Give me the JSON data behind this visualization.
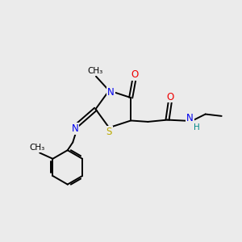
{
  "background_color": "#ebebeb",
  "atom_colors": {
    "N": "#0000ee",
    "O": "#ee0000",
    "S": "#bbaa00",
    "H": "#008888",
    "C": "#000000"
  },
  "bond_color": "#000000",
  "bond_width": 1.4,
  "font_size_atoms": 8.5,
  "font_size_small": 7.0,
  "font_size_label": 7.5
}
